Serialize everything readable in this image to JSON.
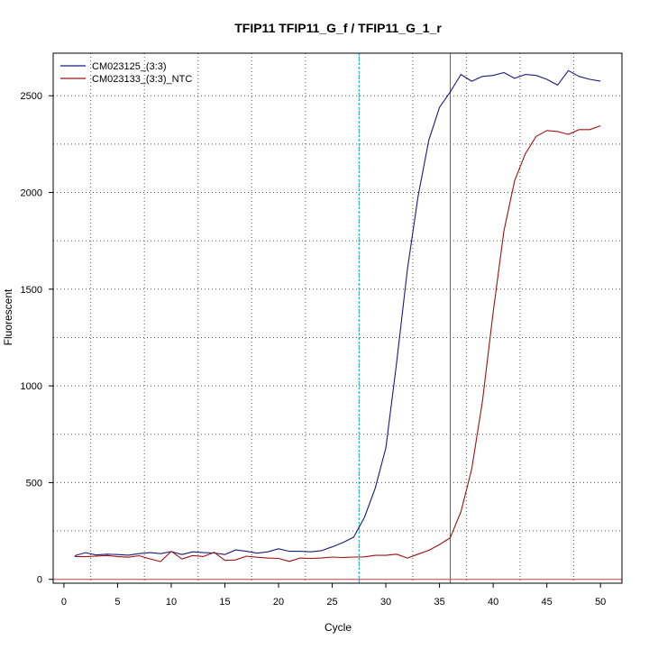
{
  "chart_data": {
    "type": "line",
    "title": "TFIP11  TFIP11_G_f / TFIP11_G_1_r",
    "xlabel": "Cycle",
    "ylabel": "Fluorescent",
    "xlim": [
      -1,
      52
    ],
    "ylim": [
      -20,
      2720
    ],
    "x_ticks": [
      0,
      5,
      10,
      15,
      20,
      25,
      30,
      35,
      40,
      45,
      50
    ],
    "y_ticks": [
      0,
      500,
      1000,
      1500,
      2000,
      2500
    ],
    "grid": true,
    "legend_position": "top-left",
    "threshold_lines": [
      {
        "orientation": "vertical",
        "value": 27.5,
        "color": "#00c0c0"
      },
      {
        "orientation": "vertical",
        "value": 36.0,
        "color": "#c04040"
      },
      {
        "orientation": "horizontal",
        "value": 0,
        "color": "#c04040"
      }
    ],
    "x": [
      1,
      2,
      3,
      4,
      5,
      6,
      7,
      8,
      9,
      10,
      11,
      12,
      13,
      14,
      15,
      16,
      17,
      18,
      19,
      20,
      21,
      22,
      23,
      24,
      25,
      26,
      27,
      28,
      29,
      30,
      31,
      32,
      33,
      34,
      35,
      36,
      37,
      38,
      39,
      40,
      41,
      42,
      43,
      44,
      45,
      46,
      47,
      48,
      49,
      50
    ],
    "series": [
      {
        "name": "CM023125_(3:3)",
        "color": "#1a1a80",
        "values": [
          122,
          138,
          126,
          130,
          128,
          125,
          133,
          138,
          133,
          143,
          128,
          142,
          138,
          136,
          128,
          152,
          145,
          135,
          142,
          158,
          145,
          145,
          142,
          148,
          168,
          190,
          218,
          320,
          470,
          680,
          1120,
          1600,
          1980,
          2270,
          2440,
          2520,
          2610,
          2575,
          2600,
          2605,
          2620,
          2590,
          2610,
          2605,
          2585,
          2555,
          2630,
          2600,
          2585,
          2575
        ]
      },
      {
        "name": "CM023133_(3:3)_NTC",
        "color": "#a01010",
        "values": [
          118,
          117,
          120,
          123,
          118,
          114,
          122,
          106,
          92,
          145,
          105,
          123,
          118,
          140,
          98,
          100,
          120,
          114,
          110,
          108,
          93,
          110,
          108,
          110,
          115,
          113,
          115,
          116,
          124,
          124,
          130,
          110,
          130,
          150,
          180,
          215,
          350,
          570,
          920,
          1380,
          1800,
          2060,
          2200,
          2290,
          2320,
          2315,
          2300,
          2325,
          2325,
          2345
        ]
      }
    ]
  }
}
